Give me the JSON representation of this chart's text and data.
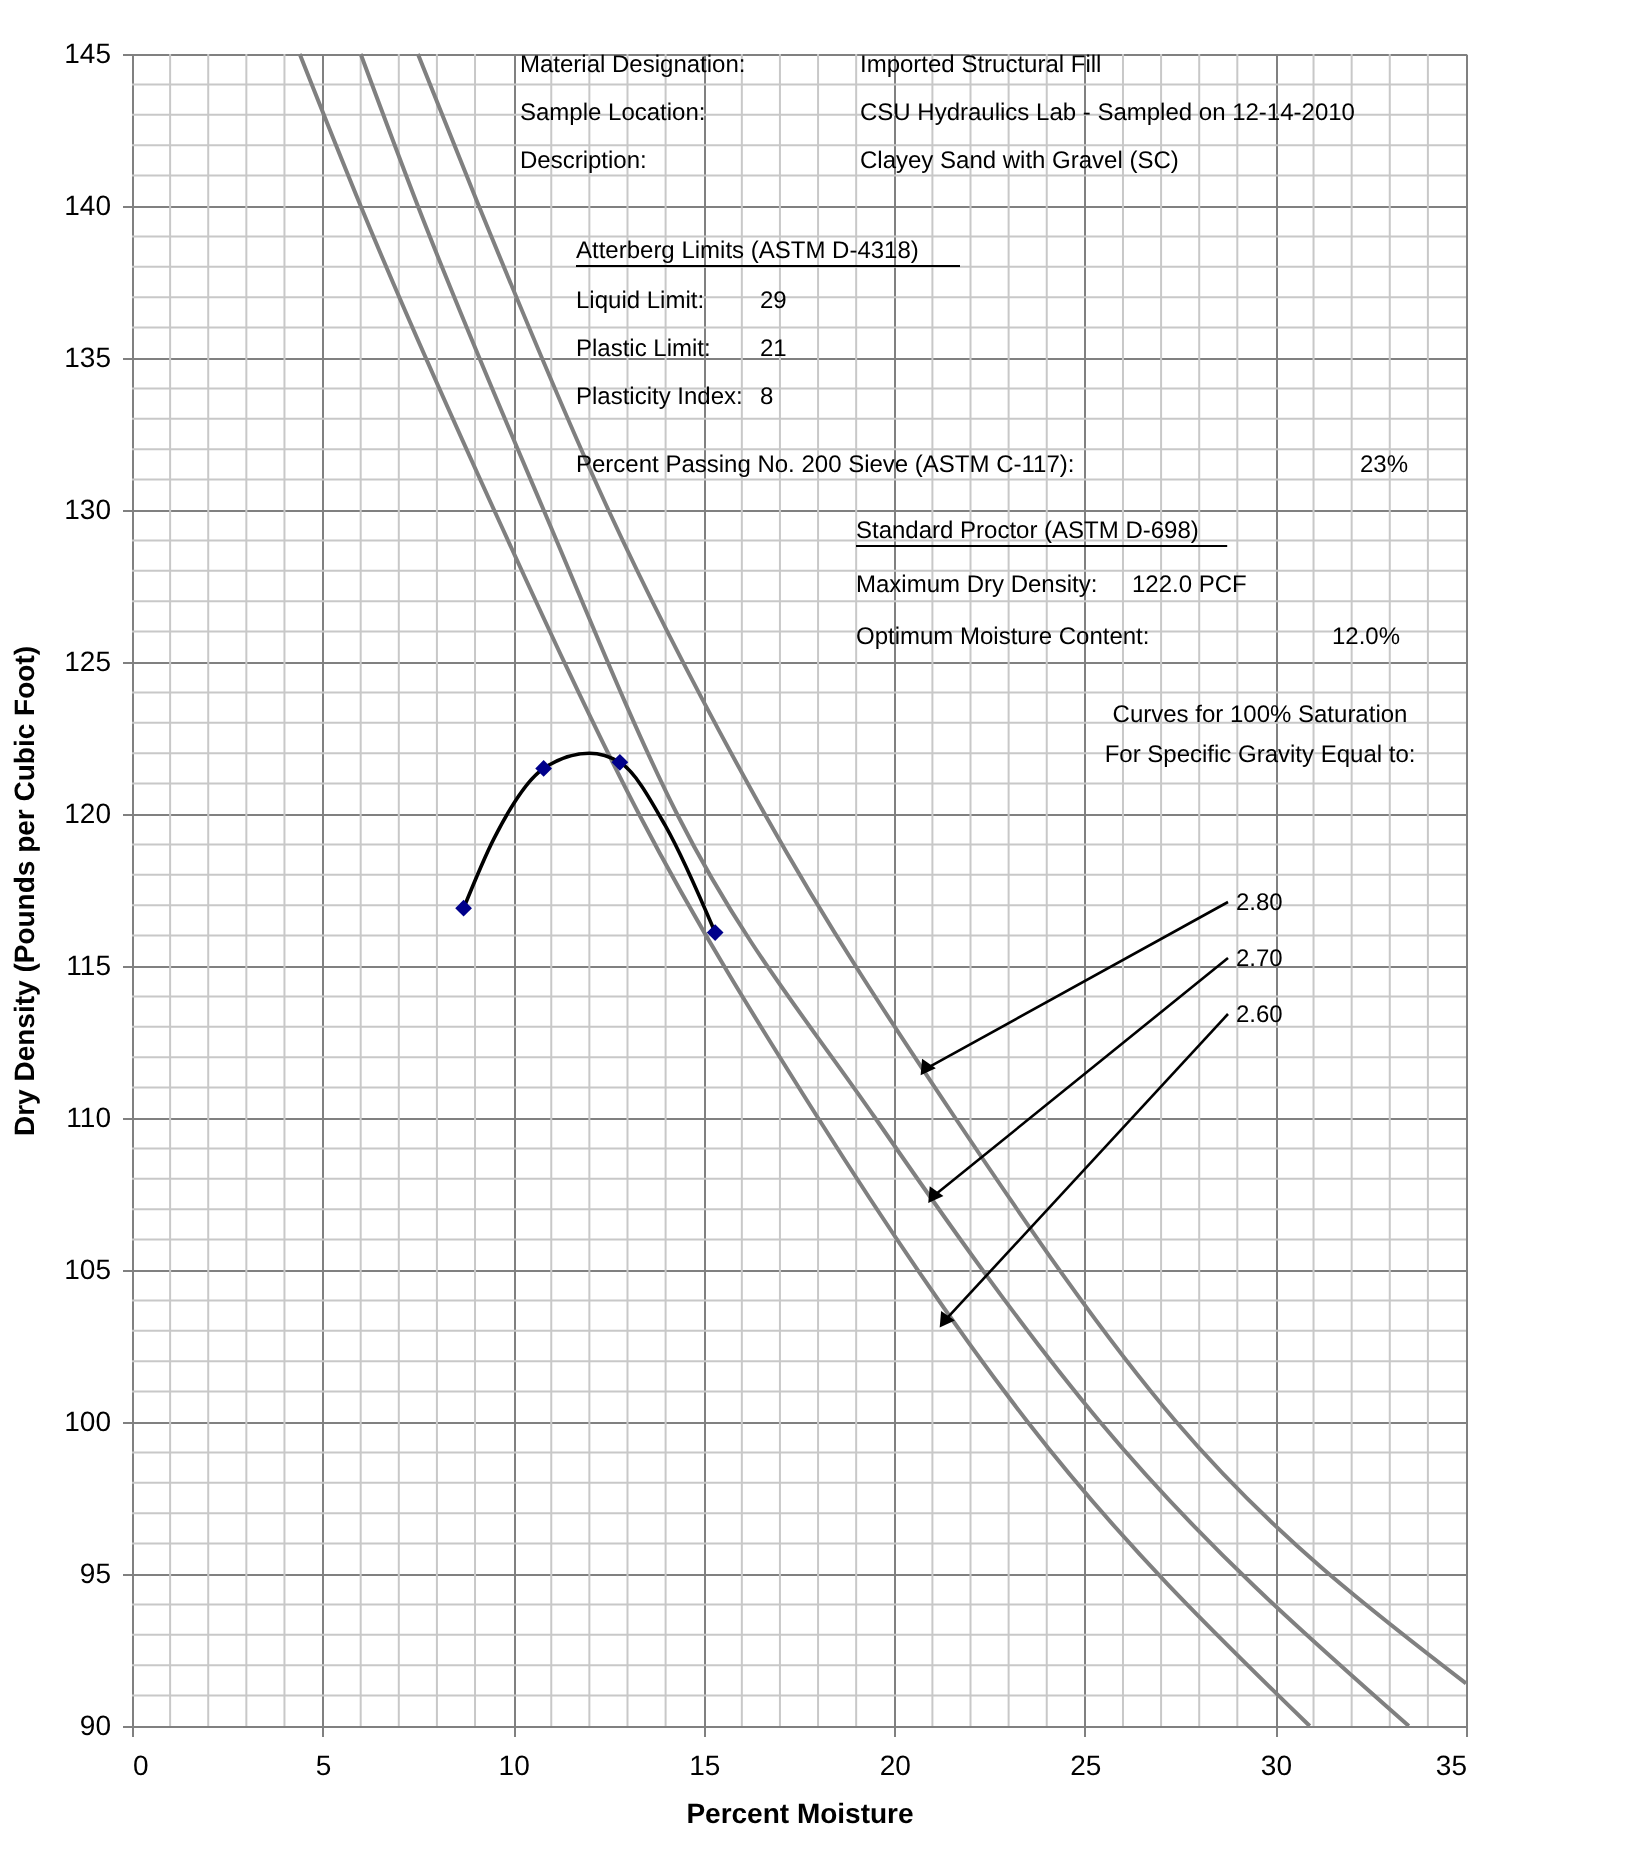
{
  "chart_data": {
    "type": "line",
    "xlabel": "Percent Moisture",
    "ylabel": "Dry Density (Pounds per Cubic Foot)",
    "xlim": [
      0,
      35
    ],
    "ylim": [
      90,
      145
    ],
    "xticks": [
      0,
      {
        "value": 1,
        "label": null
      },
      {
        "value": 2,
        "label": null
      },
      {
        "value": 3,
        "label": null
      },
      {
        "value": 4,
        "label": null
      },
      5,
      {
        "value": 6,
        "label": null
      },
      {
        "value": 7,
        "label": null
      },
      {
        "value": 8,
        "label": null
      },
      {
        "value": 9,
        "label": null
      },
      10,
      {
        "value": 11,
        "label": null
      },
      {
        "value": 12,
        "label": null
      },
      {
        "value": 13,
        "label": null
      },
      {
        "value": 14,
        "label": null
      },
      15,
      {
        "value": 16,
        "label": null
      },
      {
        "value": 17,
        "label": null
      },
      {
        "value": 18,
        "label": null
      },
      {
        "value": 19,
        "label": null
      },
      20,
      {
        "value": 21,
        "label": null
      },
      {
        "value": 22,
        "label": null
      },
      {
        "value": 23,
        "label": null
      },
      {
        "value": 24,
        "label": null
      },
      25,
      {
        "value": 26,
        "label": null
      },
      {
        "value": 27,
        "label": null
      },
      {
        "value": 28,
        "label": null
      },
      {
        "value": 29,
        "label": null
      },
      30,
      {
        "value": 31,
        "label": null
      },
      {
        "value": 32,
        "label": null
      },
      {
        "value": 33,
        "label": null
      },
      {
        "value": 34,
        "label": null
      },
      35
    ],
    "yticks": [
      90,
      {
        "value": 91,
        "label": null
      },
      {
        "value": 92,
        "label": null
      },
      {
        "value": 93,
        "label": null
      },
      {
        "value": 94,
        "label": null
      },
      95,
      {
        "value": 96,
        "label": null
      },
      {
        "value": 97,
        "label": null
      },
      {
        "value": 98,
        "label": null
      },
      {
        "value": 99,
        "label": null
      },
      100,
      {
        "value": 101,
        "label": null
      },
      {
        "value": 102,
        "label": null
      },
      {
        "value": 103,
        "label": null
      },
      {
        "value": 104,
        "label": null
      },
      105,
      {
        "value": 106,
        "label": null
      },
      {
        "value": 107,
        "label": null
      },
      {
        "value": 108,
        "label": null
      },
      {
        "value": 109,
        "label": null
      },
      110,
      {
        "value": 111,
        "label": null
      },
      {
        "value": 112,
        "label": null
      },
      {
        "value": 113,
        "label": null
      },
      {
        "value": 114,
        "label": null
      },
      115,
      {
        "value": 116,
        "label": null
      },
      {
        "value": 117,
        "label": null
      },
      {
        "value": 118,
        "label": null
      },
      {
        "value": 119,
        "label": null
      },
      120,
      {
        "value": 121,
        "label": null
      },
      {
        "value": 122,
        "label": null
      },
      {
        "value": 123,
        "label": null
      },
      {
        "value": 124,
        "label": null
      },
      125,
      {
        "value": 126,
        "label": null
      },
      {
        "value": 127,
        "label": null
      },
      {
        "value": 128,
        "label": null
      },
      {
        "value": 129,
        "label": null
      },
      130,
      {
        "value": 131,
        "label": null
      },
      {
        "value": 132,
        "label": null
      },
      {
        "value": 133,
        "label": null
      },
      {
        "value": 134,
        "label": null
      },
      135,
      {
        "value": 136,
        "label": null
      },
      {
        "value": 137,
        "label": null
      },
      {
        "value": 138,
        "label": null
      },
      {
        "value": 139,
        "label": null
      },
      140,
      {
        "value": 141,
        "label": null
      },
      {
        "value": 142,
        "label": null
      },
      {
        "value": 143,
        "label": null
      },
      {
        "value": 144,
        "label": null
      },
      145
    ],
    "grid": true,
    "series": [
      {
        "color": "#808080",
        "x": [
          7.5,
          9.1,
          12.5,
          16.6,
          21.6,
          27.4,
          35
        ],
        "values": [
          145,
          140,
          130,
          120,
          110,
          100,
          91.4
        ]
      },
      {
        "color": "#808080",
        "x": [
          6.0,
          7.5,
          10.8,
          14.3,
          19.5,
          25.4,
          33.5
        ],
        "values": [
          145,
          140,
          130,
          120,
          110,
          100,
          90
        ]
      },
      {
        "color": "#808080",
        "x": [
          4.4,
          6.0,
          9.5,
          13.3,
          18.0,
          23.5,
          30.9
        ],
        "values": [
          145,
          140,
          130,
          120,
          110,
          100,
          90
        ]
      },
      {
        "color": "#000000",
        "x": [
          8.7,
          9.5,
          10.8,
          12.0,
          12.8,
          14.0,
          15.3
        ],
        "values": [
          116.9,
          119.2,
          121.5,
          122.0,
          121.7,
          119.6,
          116.1
        ]
      },
      {
        "type": "scatter",
        "marker": "diamond",
        "color": "#00008b",
        "x": [
          8.7,
          10.8,
          12.8,
          15.3
        ],
        "values": [
          116.9,
          121.5,
          121.7,
          116.1
        ]
      }
    ],
    "annotations": [
      "Material Designation:",
      "Imported Structural Fill",
      "Sample Location:",
      "CSU Hydraulics Lab - Sampled on 12-14-2010",
      "Description:",
      "Clayey Sand with Gravel (SC)",
      "Atterberg Limits (ASTM D-4318)",
      "Liquid Limit:",
      "29",
      "Plastic Limit:",
      "21",
      "Plasticity Index:",
      "8",
      "Percent Passing No. 200 Sieve (ASTM C-117):",
      "23%",
      "Standard Proctor (ASTM D-698)",
      "Maximum Dry Density:",
      "122.0 PCF",
      "Optimum Moisture Content:",
      "12.0%",
      "Curves for 100% Saturation",
      "For Specific Gravity Equal to:",
      {
        "text": "2.80",
        "x": 20.8,
        "y": 111.6
      },
      {
        "text": "2.70",
        "x": 21.0,
        "y": 107.4
      },
      {
        "text": "2.60",
        "x": 21.3,
        "y": 103.3
      }
    ]
  }
}
